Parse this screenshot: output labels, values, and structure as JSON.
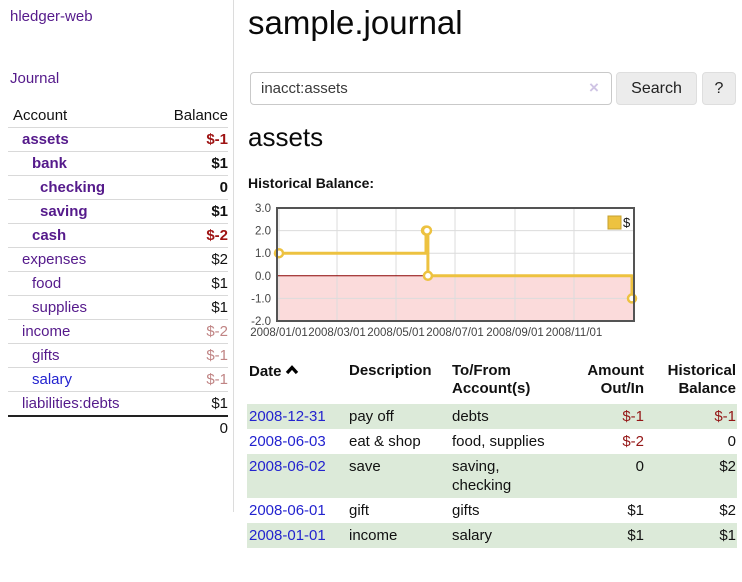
{
  "sidebar": {
    "brand": "hledger-web",
    "journal_link": "Journal",
    "accounts_table": {
      "account_header": "Account",
      "balance_header": "Balance",
      "rows": [
        {
          "name": "assets",
          "indent": 1,
          "balance": "$-1",
          "bold": true,
          "neg": "strong",
          "link_color": "purple"
        },
        {
          "name": "bank",
          "indent": 2,
          "balance": "$1",
          "bold": true,
          "neg": "none",
          "link_color": "purple"
        },
        {
          "name": "checking",
          "indent": 3,
          "balance": "0",
          "bold": true,
          "neg": "none",
          "link_color": "purple"
        },
        {
          "name": "saving",
          "indent": 3,
          "balance": "$1",
          "bold": true,
          "neg": "none",
          "link_color": "purple"
        },
        {
          "name": "cash",
          "indent": 2,
          "balance": "$-2",
          "bold": true,
          "neg": "strong",
          "link_color": "purple"
        },
        {
          "name": "expenses",
          "indent": 1,
          "balance": "$2",
          "bold": false,
          "neg": "none",
          "link_color": "purple"
        },
        {
          "name": "food",
          "indent": 2,
          "balance": "$1",
          "bold": false,
          "neg": "none",
          "link_color": "purple"
        },
        {
          "name": "supplies",
          "indent": 2,
          "balance": "$1",
          "bold": false,
          "neg": "none",
          "link_color": "purple"
        },
        {
          "name": "income",
          "indent": 1,
          "balance": "$-2",
          "bold": false,
          "neg": "soft",
          "link_color": "purple"
        },
        {
          "name": "gifts",
          "indent": 2,
          "balance": "$-1",
          "bold": false,
          "neg": "soft",
          "link_color": "purple"
        },
        {
          "name": "salary",
          "indent": 2,
          "balance": "$-1",
          "bold": false,
          "neg": "soft",
          "link_color": "blue"
        },
        {
          "name": "liabilities:debts",
          "indent": 1,
          "balance": "$1",
          "bold": false,
          "neg": "none",
          "link_color": "purple"
        }
      ],
      "total": "0"
    }
  },
  "main": {
    "title": "sample.journal",
    "search": {
      "value": "inacct:assets",
      "clear_icon": "×",
      "search_button": "Search",
      "help_button": "?"
    },
    "account_heading": "assets"
  },
  "chart_data": {
    "type": "line",
    "title": "Historical Balance:",
    "steps": true,
    "xlim": [
      "2008-01-01",
      "2008-12-31"
    ],
    "ylim": [
      -2,
      3
    ],
    "y_ticks": [
      "3.0",
      "2.0",
      "1.0",
      "0.0",
      "-1.0",
      "-2.0"
    ],
    "x_ticks": [
      {
        "label": "2008/01/01",
        "date": "2008-01-01"
      },
      {
        "label": "2008/03/01",
        "date": "2008-03-01"
      },
      {
        "label": "2008/05/01",
        "date": "2008-05-01"
      },
      {
        "label": "2008/07/01",
        "date": "2008-07-01"
      },
      {
        "label": "2008/09/01",
        "date": "2008-09-01"
      },
      {
        "label": "2008/11/01",
        "date": "2008-11-01"
      }
    ],
    "series": [
      {
        "name": "$",
        "color": "#edc240",
        "points": [
          {
            "date": "2008-01-01",
            "value": 1
          },
          {
            "date": "2008-06-01",
            "value": 2
          },
          {
            "date": "2008-06-02",
            "value": 2
          },
          {
            "date": "2008-06-03",
            "value": 0
          },
          {
            "date": "2008-12-31",
            "value": -1
          }
        ]
      }
    ],
    "legend": {
      "label": "$",
      "position": "top-right"
    },
    "negative_region_color": "#fbdbdb",
    "zero_line_color": "#8b0000",
    "grid_color": "#dcdcdc",
    "border_color": "#545454"
  },
  "register": {
    "headers": {
      "date": "Date",
      "description": "Description",
      "accounts": "To/From Account(s)",
      "amount": "Amount Out/In",
      "balance": "Historical Balance"
    },
    "sort_icon": "chevron-up",
    "rows": [
      {
        "date": "2008-12-31",
        "description": "pay off",
        "accounts": "debts",
        "amount": "$-1",
        "balance": "$-1",
        "amount_neg": true,
        "balance_neg": true
      },
      {
        "date": "2008-06-03",
        "description": "eat & shop",
        "accounts": "food, supplies",
        "amount": "$-2",
        "balance": "0",
        "amount_neg": true,
        "balance_neg": false
      },
      {
        "date": "2008-06-02",
        "description": "save",
        "accounts": "saving, checking",
        "amount": "0",
        "balance": "$2",
        "amount_neg": false,
        "balance_neg": false
      },
      {
        "date": "2008-06-01",
        "description": "gift",
        "accounts": "gifts",
        "amount": "$1",
        "balance": "$2",
        "amount_neg": false,
        "balance_neg": false
      },
      {
        "date": "2008-01-01",
        "description": "income",
        "accounts": "salary",
        "amount": "$1",
        "balance": "$1",
        "amount_neg": false,
        "balance_neg": false
      }
    ]
  }
}
